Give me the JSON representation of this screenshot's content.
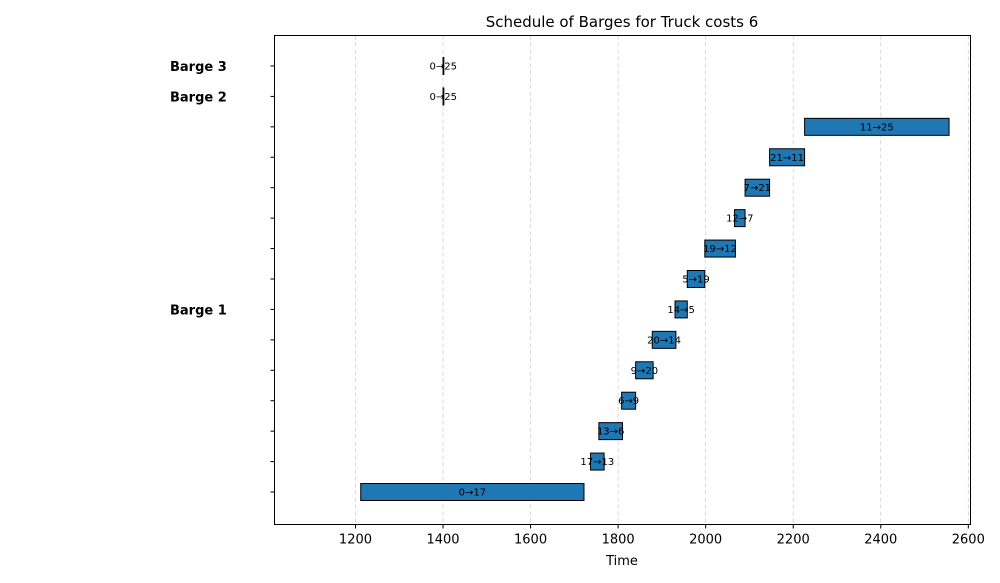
{
  "chart_data": {
    "type": "gantt",
    "title": "Schedule of Barges for Truck costs 6",
    "xlabel": "Time",
    "ylabel": "",
    "xlim": [
      1015,
      2605
    ],
    "xticks": [
      1200,
      1400,
      1600,
      1800,
      2000,
      2200,
      2400,
      2600
    ],
    "grid": "x-dashed",
    "bar_color": "#1f77b4",
    "rows": 15,
    "group_labels": [
      {
        "label": "Barge 3",
        "row": 14
      },
      {
        "label": "Barge 2",
        "row": 13
      },
      {
        "label": "Barge 1",
        "row": 6
      }
    ],
    "tasks": [
      {
        "label": "0→17",
        "start": 1212,
        "end": 1722,
        "row": 0
      },
      {
        "label": "17→13",
        "start": 1737,
        "end": 1768,
        "row": 1
      },
      {
        "label": "13→6",
        "start": 1756,
        "end": 1810,
        "row": 2
      },
      {
        "label": "6→9",
        "start": 1808,
        "end": 1840,
        "row": 3
      },
      {
        "label": "9→20",
        "start": 1840,
        "end": 1880,
        "row": 4
      },
      {
        "label": "20→14",
        "start": 1878,
        "end": 1932,
        "row": 5
      },
      {
        "label": "14→5",
        "start": 1930,
        "end": 1958,
        "row": 6
      },
      {
        "label": "5→19",
        "start": 1958,
        "end": 1998,
        "row": 7
      },
      {
        "label": "19→12",
        "start": 1998,
        "end": 2068,
        "row": 8
      },
      {
        "label": "12→7",
        "start": 2066,
        "end": 2090,
        "row": 9
      },
      {
        "label": "7→21",
        "start": 2090,
        "end": 2146,
        "row": 10
      },
      {
        "label": "21→11",
        "start": 2146,
        "end": 2226,
        "row": 11
      },
      {
        "label": "11→25",
        "start": 2226,
        "end": 2556,
        "row": 12
      },
      {
        "label": "0→25",
        "start": 1400,
        "end": 1401,
        "row": 13
      },
      {
        "label": "0→25",
        "start": 1400,
        "end": 1401,
        "row": 14
      }
    ]
  }
}
